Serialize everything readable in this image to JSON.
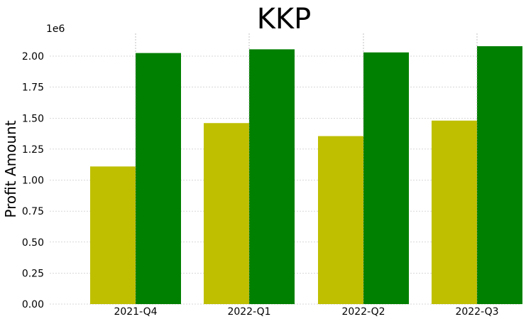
{
  "chart_data": {
    "type": "bar",
    "title": "KKP",
    "xlabel": "",
    "ylabel": "Profit Amount",
    "offset_label": "1e6",
    "categories": [
      "2021-Q4",
      "2022-Q1",
      "2022-Q2",
      "2022-Q3"
    ],
    "series": [
      {
        "color": "#bfbf00",
        "values": [
          1110000,
          1460000,
          1355000,
          1480000
        ]
      },
      {
        "color": "#008000",
        "values": [
          2025000,
          2055000,
          2030000,
          2080000
        ]
      }
    ],
    "ylim": [
      0,
      2200000
    ],
    "yticks": [
      0,
      250000,
      500000,
      750000,
      1000000,
      1250000,
      1500000,
      1750000,
      2000000
    ],
    "ytick_labels": [
      "0.00",
      "0.25",
      "0.50",
      "0.75",
      "1.00",
      "1.25",
      "1.50",
      "1.75",
      "2.00"
    ],
    "grid": true,
    "legend": "none"
  }
}
